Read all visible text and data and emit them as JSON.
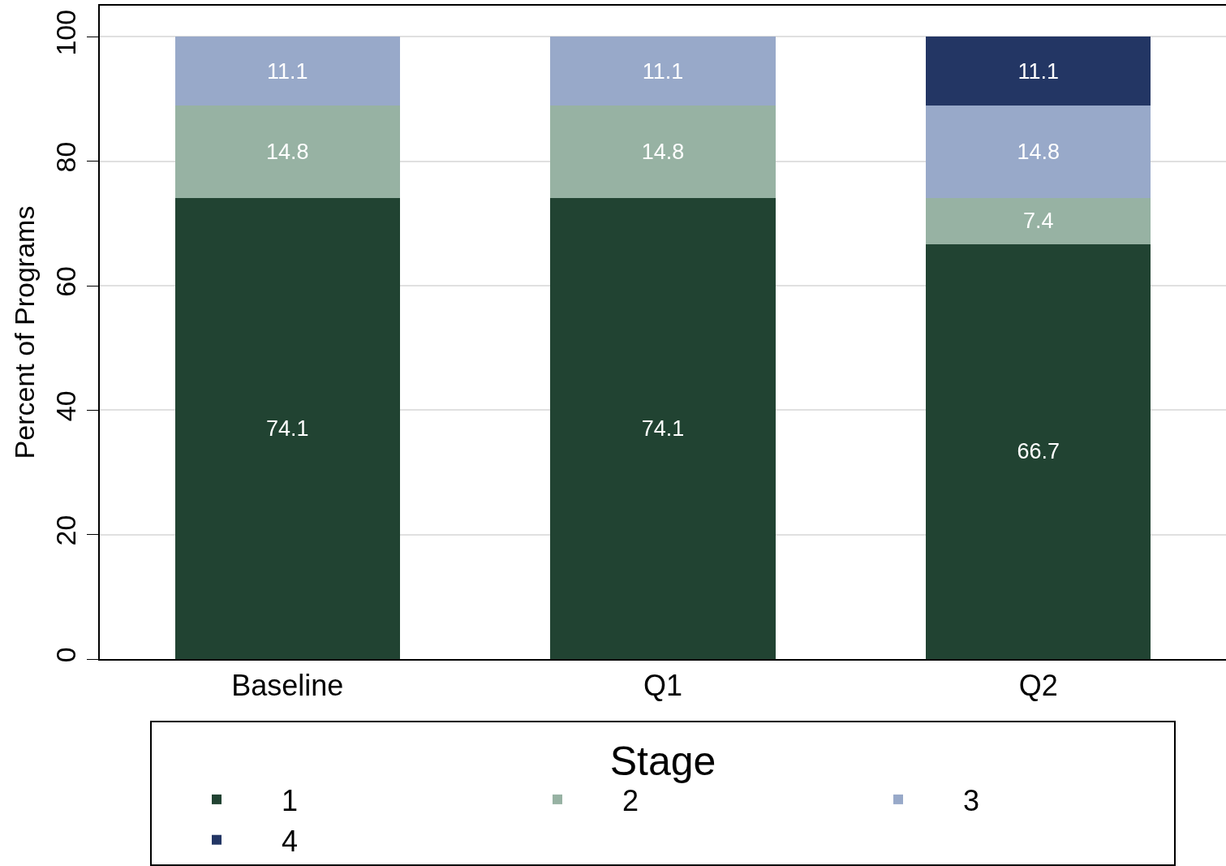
{
  "chart_data": {
    "type": "bar",
    "stacked": true,
    "ylabel": "Percent of Programs",
    "legend_title": "Stage",
    "categories": [
      "Baseline",
      "Q1",
      "Q2"
    ],
    "series": [
      {
        "name": "1",
        "color": "#214332",
        "values": [
          74.1,
          74.1,
          66.7
        ]
      },
      {
        "name": "2",
        "color": "#97b2a3",
        "values": [
          14.8,
          14.8,
          7.4
        ]
      },
      {
        "name": "3",
        "color": "#98a9c9",
        "values": [
          11.1,
          11.1,
          14.8
        ]
      },
      {
        "name": "4",
        "color": "#233664",
        "values": [
          null,
          null,
          11.1
        ]
      }
    ],
    "ylim": [
      0,
      105
    ],
    "yticks": [
      0,
      20,
      40,
      60,
      80,
      100
    ],
    "grid": "y",
    "legend": "bottom",
    "data_labels": true
  }
}
